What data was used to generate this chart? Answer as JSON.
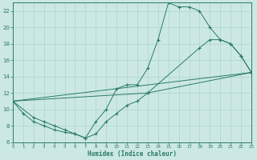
{
  "xlabel": "Humidex (Indice chaleur)",
  "xlim": [
    0,
    23
  ],
  "ylim": [
    6,
    23
  ],
  "xticks": [
    0,
    1,
    2,
    3,
    4,
    5,
    6,
    7,
    8,
    9,
    10,
    11,
    12,
    13,
    14,
    15,
    16,
    17,
    18,
    19,
    20,
    21,
    22,
    23
  ],
  "yticks": [
    6,
    8,
    10,
    12,
    14,
    16,
    18,
    20,
    22
  ],
  "bg_color": "#cce8e4",
  "grid_color": "#aad4ce",
  "line_color": "#2a7a6a",
  "curve1_x": [
    0,
    1,
    2,
    3,
    4,
    5,
    6,
    7,
    8,
    9,
    10,
    11,
    12,
    13,
    14,
    15,
    16,
    17,
    18,
    19,
    20,
    21,
    22,
    23
  ],
  "curve1_y": [
    11.0,
    9.5,
    8.5,
    8.0,
    7.5,
    7.2,
    7.0,
    6.5,
    8.5,
    10.0,
    12.5,
    13.0,
    13.0,
    15.0,
    18.5,
    23.0,
    22.5,
    22.5,
    22.0,
    20.0,
    18.5,
    18.0,
    16.5,
    14.5
  ],
  "curve2_x": [
    0,
    2,
    3,
    4,
    5,
    6,
    7,
    8,
    9,
    10,
    11,
    12,
    13,
    23
  ],
  "curve2_y": [
    11.0,
    9.0,
    8.5,
    8.0,
    7.5,
    7.0,
    6.5,
    7.0,
    8.5,
    9.5,
    10.5,
    11.0,
    12.0,
    14.5
  ],
  "line_x": [
    0,
    23
  ],
  "line_y": [
    11.0,
    14.5
  ],
  "line2_x": [
    0,
    13,
    18,
    19,
    20,
    21,
    22,
    23
  ],
  "line2_y": [
    11.0,
    12.0,
    17.5,
    18.5,
    18.5,
    18.0,
    16.5,
    14.5
  ]
}
